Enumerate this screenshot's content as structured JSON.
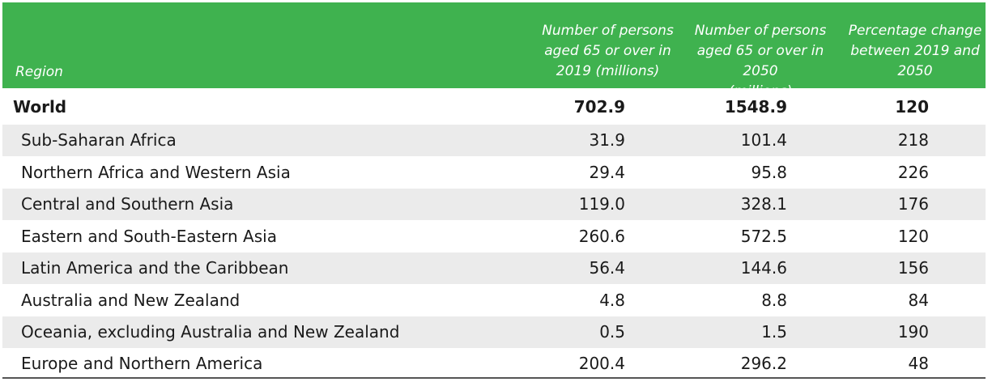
{
  "header": {
    "region": "Region",
    "col1_lines": [
      "Number of persons",
      "aged 65 or over in",
      "2019  (millions)"
    ],
    "col2_lines": [
      "Number of persons",
      "aged 65 or over in 2050",
      "(millions)"
    ],
    "col3_lines": [
      "Percentage change",
      "between 2019 and",
      "2050"
    ]
  },
  "rows": [
    {
      "region": "World",
      "v2019": "702.9",
      "v2050": "1548.9",
      "pct": "120"
    },
    {
      "region": "Sub-Saharan Africa",
      "v2019": "31.9",
      "v2050": "101.4",
      "pct": "218"
    },
    {
      "region": "Northern Africa and Western Asia",
      "v2019": "29.4",
      "v2050": "95.8",
      "pct": "226"
    },
    {
      "region": "Central and Southern Asia",
      "v2019": "119.0",
      "v2050": "328.1",
      "pct": "176"
    },
    {
      "region": "Eastern and South-Eastern Asia",
      "v2019": "260.6",
      "v2050": "572.5",
      "pct": "120"
    },
    {
      "region": "Latin America and the Caribbean",
      "v2019": "56.4",
      "v2050": "144.6",
      "pct": "156"
    },
    {
      "region": "Australia and New Zealand",
      "v2019": "4.8",
      "v2050": "8.8",
      "pct": "84"
    },
    {
      "region": "Oceania, excluding Australia and New Zealand",
      "v2019": "0.5",
      "v2050": "1.5",
      "pct": "190"
    },
    {
      "region": "Europe and Northern America",
      "v2019": "200.4",
      "v2050": "296.2",
      "pct": "48"
    }
  ],
  "colors": {
    "header_bg": "#3fb24f",
    "stripe": "#ebebeb"
  }
}
